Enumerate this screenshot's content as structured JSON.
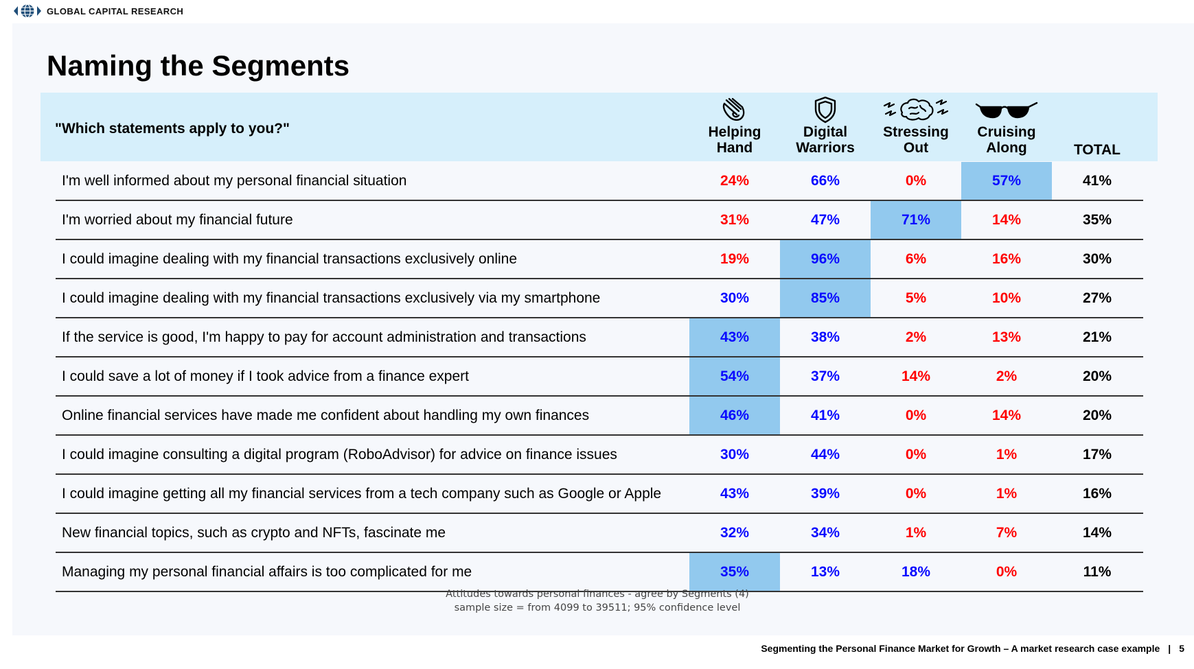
{
  "brand": "GLOBAL CAPITAL RESEARCH",
  "title": "Naming the Segments",
  "question": "\"Which statements apply to you?\"",
  "segments": [
    {
      "line1": "Helping",
      "line2": "Hand",
      "icon": "helping-hand-icon"
    },
    {
      "line1": "Digital",
      "line2": "Warriors",
      "icon": "shield-icon"
    },
    {
      "line1": "Stressing",
      "line2": "Out",
      "icon": "stressed-brain-icon"
    },
    {
      "line1": "Cruising",
      "line2": "Along",
      "icon": "sunglasses-icon"
    }
  ],
  "total_label": "TOTAL",
  "colors": {
    "red": "#ff0000",
    "blue": "#0a0aff",
    "highlight": "#92c9ee",
    "header_bg": "#d6effb"
  },
  "rows": [
    {
      "statement": "I'm well informed about my personal financial situation",
      "values": [
        "24%",
        "66%",
        "0%",
        "57%"
      ],
      "total": "41%",
      "colors": [
        "red",
        "blue",
        "red",
        "blue"
      ],
      "highlight": [
        false,
        false,
        false,
        true
      ]
    },
    {
      "statement": "I'm worried about my financial future",
      "values": [
        "31%",
        "47%",
        "71%",
        "14%"
      ],
      "total": "35%",
      "colors": [
        "red",
        "blue",
        "blue",
        "red"
      ],
      "highlight": [
        false,
        false,
        true,
        false
      ]
    },
    {
      "statement": "I could imagine dealing with my financial transactions exclusively online",
      "values": [
        "19%",
        "96%",
        "6%",
        "16%"
      ],
      "total": "30%",
      "colors": [
        "red",
        "blue",
        "red",
        "red"
      ],
      "highlight": [
        false,
        true,
        false,
        false
      ]
    },
    {
      "statement": "I could imagine dealing with my financial transactions exclusively via my smartphone",
      "values": [
        "30%",
        "85%",
        "5%",
        "10%"
      ],
      "total": "27%",
      "colors": [
        "blue",
        "blue",
        "red",
        "red"
      ],
      "highlight": [
        false,
        true,
        false,
        false
      ]
    },
    {
      "statement": "If the service is good, I'm happy to pay for account administration and transactions",
      "values": [
        "43%",
        "38%",
        "2%",
        "13%"
      ],
      "total": "21%",
      "colors": [
        "blue",
        "blue",
        "red",
        "red"
      ],
      "highlight": [
        true,
        false,
        false,
        false
      ]
    },
    {
      "statement": "I could save a lot of money if I took advice from a finance expert",
      "values": [
        "54%",
        "37%",
        "14%",
        "2%"
      ],
      "total": "20%",
      "colors": [
        "blue",
        "blue",
        "red",
        "red"
      ],
      "highlight": [
        true,
        false,
        false,
        false
      ]
    },
    {
      "statement": "Online financial services have made me confident about handling my own finances",
      "values": [
        "46%",
        "41%",
        "0%",
        "14%"
      ],
      "total": "20%",
      "colors": [
        "blue",
        "blue",
        "red",
        "red"
      ],
      "highlight": [
        true,
        false,
        false,
        false
      ]
    },
    {
      "statement": "I could imagine consulting a digital program (RoboAdvisor) for advice on finance issues",
      "values": [
        "30%",
        "44%",
        "0%",
        "1%"
      ],
      "total": "17%",
      "colors": [
        "blue",
        "blue",
        "red",
        "red"
      ],
      "highlight": [
        false,
        false,
        false,
        false
      ]
    },
    {
      "statement": "I could imagine getting all my financial services from a tech company such as Google or Apple",
      "values": [
        "43%",
        "39%",
        "0%",
        "1%"
      ],
      "total": "16%",
      "colors": [
        "blue",
        "blue",
        "red",
        "red"
      ],
      "highlight": [
        false,
        false,
        false,
        false
      ]
    },
    {
      "statement": "New financial topics, such as crypto and NFTs, fascinate me",
      "values": [
        "32%",
        "34%",
        "1%",
        "7%"
      ],
      "total": "14%",
      "colors": [
        "blue",
        "blue",
        "red",
        "red"
      ],
      "highlight": [
        false,
        false,
        false,
        false
      ]
    },
    {
      "statement": "Managing my personal financial affairs is too complicated for me",
      "values": [
        "35%",
        "13%",
        "18%",
        "0%"
      ],
      "total": "11%",
      "colors": [
        "blue",
        "blue",
        "blue",
        "red"
      ],
      "highlight": [
        true,
        false,
        false,
        false
      ]
    }
  ],
  "note_line1": "Attitudes towards personal finances - agree by Segments (4)",
  "note_line2": "sample size = from 4099 to 39511; 95% confidence level",
  "footer_text": "Segmenting the Personal Finance Market for Growth – A market research case example",
  "footer_separator": "|",
  "page_number": "5"
}
